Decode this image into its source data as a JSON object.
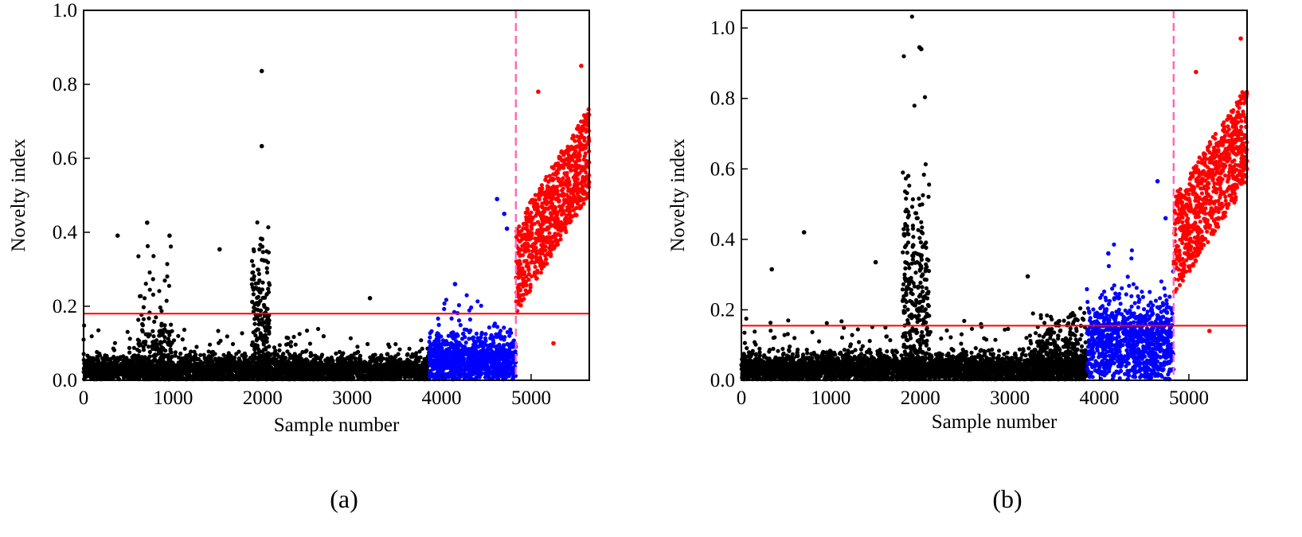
{
  "chart_data": [
    {
      "type": "scatter",
      "panel_label": "(a)",
      "xlabel": "Sample number",
      "ylabel": "Novelty index",
      "xlim": [
        0,
        5650
      ],
      "ylim": [
        0,
        1.0
      ],
      "x_ticks": [
        0,
        1000,
        2000,
        3000,
        4000,
        5000
      ],
      "y_ticks": [
        0.0,
        0.2,
        0.4,
        0.6,
        0.8,
        1.0
      ],
      "y_tick_labels": [
        "0.0",
        "0.2",
        "0.4",
        "0.6",
        "0.8",
        "1.0"
      ],
      "threshold": 0.18,
      "threshold_color": "#ff0000",
      "split_x": 4830,
      "split_color": "#ff69b4",
      "grid": false,
      "series": [
        {
          "color": "#000000",
          "x_range": [
            0,
            3860
          ],
          "segments": [
            {
              "x": [
                0,
                3860
              ],
              "baseline": 0.025,
              "spread": 0.04,
              "spikes": 0.1,
              "n": 3300
            },
            {
              "x": [
                1880,
                2080
              ],
              "baseline": 0.12,
              "spread": 0.25,
              "spikes": 0.6,
              "n": 180
            },
            {
              "x": [
                600,
                1000
              ],
              "baseline": 0.08,
              "spread": 0.18,
              "spikes": 0.3,
              "n": 140
            }
          ],
          "highlights": [
            [
              1990,
              0.836
            ],
            [
              1990,
              0.633
            ],
            [
              710,
              0.426
            ],
            [
              380,
              0.391
            ],
            [
              960,
              0.391
            ],
            [
              1520,
              0.354
            ],
            [
              3200,
              0.222
            ]
          ]
        },
        {
          "color": "#0000ff",
          "x_range": [
            3860,
            4830
          ],
          "segments": [
            {
              "x": [
                3860,
                4830
              ],
              "baseline": 0.05,
              "spread": 0.07,
              "spikes": 0.14,
              "n": 950
            }
          ],
          "highlights": [
            [
              4620,
              0.49
            ],
            [
              4700,
              0.45
            ],
            [
              4730,
              0.41
            ],
            [
              4150,
              0.26
            ]
          ]
        },
        {
          "color": "#ff0000",
          "x_range": [
            4830,
            5650
          ],
          "segments": [
            {
              "x": [
                4830,
                5650
              ],
              "baseline_start": 0.3,
              "baseline_end": 0.62,
              "spread": 0.12,
              "n": 820
            }
          ],
          "highlights": [
            [
              5560,
              0.85
            ],
            [
              5080,
              0.78
            ],
            [
              5250,
              0.1
            ]
          ]
        }
      ]
    },
    {
      "type": "scatter",
      "panel_label": "(b)",
      "xlabel": "Sample number",
      "ylabel": "Novelty index",
      "xlim": [
        0,
        5650
      ],
      "ylim": [
        0,
        1.05
      ],
      "x_ticks": [
        0,
        1000,
        2000,
        3000,
        4000,
        5000
      ],
      "y_ticks": [
        0.0,
        0.2,
        0.4,
        0.6,
        0.8,
        1.0
      ],
      "y_tick_labels": [
        "0.0",
        "0.2",
        "0.4",
        "0.6",
        "0.8",
        "1.0"
      ],
      "threshold": 0.155,
      "threshold_color": "#ff0000",
      "split_x": 4830,
      "split_color": "#ff69b4",
      "grid": false,
      "series": [
        {
          "color": "#000000",
          "x_range": [
            0,
            3860
          ],
          "segments": [
            {
              "x": [
                0,
                3860
              ],
              "baseline": 0.03,
              "spread": 0.045,
              "spikes": 0.12,
              "n": 3300
            },
            {
              "x": [
                1800,
                2100
              ],
              "baseline": 0.2,
              "spread": 0.35,
              "spikes": 0.7,
              "n": 260
            },
            {
              "x": [
                3300,
                3860
              ],
              "baseline": 0.07,
              "spread": 0.1,
              "spikes": 0.15,
              "n": 260
            }
          ],
          "highlights": [
            [
              1990,
              0.945
            ],
            [
              2010,
              0.94
            ],
            [
              700,
              0.42
            ],
            [
              340,
              0.315
            ],
            [
              1500,
              0.335
            ],
            [
              3200,
              0.295
            ]
          ]
        },
        {
          "color": "#0000ff",
          "x_range": [
            3860,
            4830
          ],
          "segments": [
            {
              "x": [
                3860,
                4830
              ],
              "baseline": 0.1,
              "spread": 0.11,
              "spikes": 0.2,
              "n": 950
            }
          ],
          "highlights": [
            [
              4650,
              0.565
            ],
            [
              4740,
              0.46
            ],
            [
              4100,
              0.36
            ]
          ]
        },
        {
          "color": "#ff0000",
          "x_range": [
            4830,
            5650
          ],
          "segments": [
            {
              "x": [
                4830,
                5650
              ],
              "baseline_start": 0.38,
              "baseline_end": 0.7,
              "spread": 0.14,
              "n": 820
            }
          ],
          "highlights": [
            [
              5580,
              0.97
            ],
            [
              5080,
              0.875
            ],
            [
              5230,
              0.14
            ]
          ]
        }
      ]
    }
  ]
}
